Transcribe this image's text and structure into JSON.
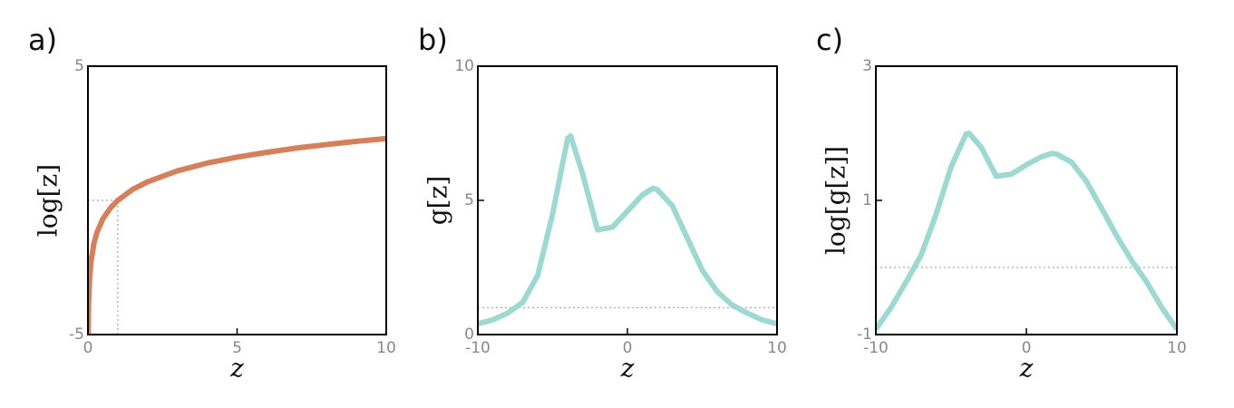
{
  "chart_data": [
    {
      "type": "line",
      "title": "a)",
      "xlabel": "z",
      "ylabel": "log[z]",
      "color": "#d4805c",
      "x": [
        0.007,
        0.01,
        0.02,
        0.05,
        0.1,
        0.2,
        0.3,
        0.5,
        0.75,
        1,
        1.5,
        2,
        3,
        4,
        5,
        6,
        7,
        8,
        9,
        10
      ],
      "values": [
        -4.96,
        -4.61,
        -3.91,
        -3.0,
        -2.3,
        -1.61,
        -1.2,
        -0.69,
        -0.29,
        0,
        0.41,
        0.69,
        1.1,
        1.39,
        1.61,
        1.79,
        1.95,
        2.08,
        2.2,
        2.3
      ],
      "xlim": [
        0,
        10
      ],
      "ylim": [
        -5,
        5
      ],
      "xticks": [
        0,
        5,
        10
      ],
      "yticks": [
        -5,
        5
      ],
      "hline": 0,
      "vline": 1
    },
    {
      "type": "line",
      "title": "b)",
      "xlabel": "z",
      "ylabel": "g[z]",
      "color": "#9dd8d2",
      "x": [
        -10,
        -9,
        -8,
        -7,
        -6,
        -5,
        -4,
        -3.8,
        -3,
        -2,
        -1,
        0,
        1,
        1.7,
        2,
        3,
        4,
        5,
        6,
        7,
        8,
        9,
        10
      ],
      "values": [
        0.4,
        0.55,
        0.8,
        1.2,
        2.2,
        4.5,
        7.3,
        7.4,
        6.0,
        3.9,
        4.0,
        4.6,
        5.2,
        5.45,
        5.4,
        4.8,
        3.6,
        2.4,
        1.6,
        1.1,
        0.8,
        0.55,
        0.4
      ],
      "xlim": [
        -10,
        10
      ],
      "ylim": [
        0,
        10
      ],
      "xticks": [
        -10,
        0,
        10
      ],
      "yticks": [
        0,
        5,
        10
      ],
      "hline": 1
    },
    {
      "type": "line",
      "title": "c)",
      "xlabel": "z",
      "ylabel": "log[g[z]]",
      "color": "#9dd8d2",
      "x": [
        -10,
        -9,
        -8,
        -7,
        -6,
        -5,
        -4,
        -3.8,
        -3,
        -2,
        -1,
        0,
        1,
        1.7,
        2,
        3,
        4,
        5,
        6,
        7,
        8,
        9,
        10
      ],
      "values": [
        -0.92,
        -0.6,
        -0.22,
        0.18,
        0.79,
        1.5,
        1.99,
        2.0,
        1.79,
        1.36,
        1.39,
        1.53,
        1.65,
        1.7,
        1.69,
        1.57,
        1.28,
        0.88,
        0.47,
        0.1,
        -0.22,
        -0.6,
        -0.92
      ],
      "xlim": [
        -10,
        10
      ],
      "ylim": [
        -1,
        3
      ],
      "xticks": [
        -10,
        0,
        10
      ],
      "yticks": [
        -1,
        1,
        3
      ],
      "hline": 0
    }
  ]
}
